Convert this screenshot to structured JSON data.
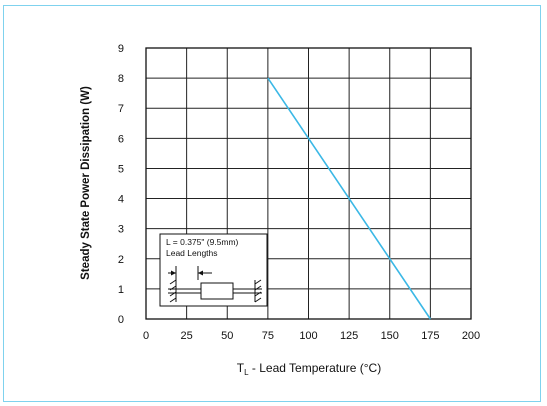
{
  "chart_data": {
    "type": "line",
    "ylabel": "Steady State Power Dissipation (W)",
    "xlabel": {
      "prefix": "T",
      "subscript": "L",
      "text": " - Lead Temperature (°C)"
    },
    "xlim": [
      0,
      200
    ],
    "ylim": [
      0,
      9
    ],
    "x_ticks": [
      0,
      25,
      50,
      75,
      100,
      125,
      150,
      175,
      200
    ],
    "y_ticks": [
      0,
      1,
      2,
      3,
      4,
      5,
      6,
      7,
      8,
      9
    ],
    "grid": true,
    "series": [
      {
        "color": "#3bb8e6",
        "x": [
          75,
          175
        ],
        "y": [
          8,
          0
        ]
      }
    ],
    "inset": {
      "line1": "L = 0.375\" (9.5mm)",
      "line2": "Lead Lengths"
    }
  },
  "frame": {
    "border_color": "#7fd2ee"
  }
}
